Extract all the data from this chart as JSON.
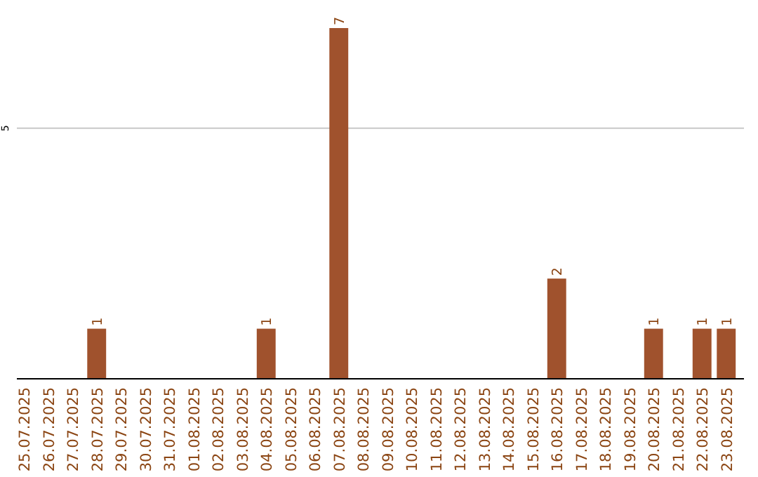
{
  "chart_data": {
    "type": "bar",
    "categories": [
      "25.07.2025",
      "26.07.2025",
      "27.07.2025",
      "28.07.2025",
      "29.07.2025",
      "30.07.2025",
      "31.07.2025",
      "01.08.2025",
      "02.08.2025",
      "03.08.2025",
      "04.08.2025",
      "05.08.2025",
      "06.08.2025",
      "07.08.2025",
      "08.08.2025",
      "09.08.2025",
      "10.08.2025",
      "11.08.2025",
      "12.08.2025",
      "13.08.2025",
      "14.08.2025",
      "15.08.2025",
      "16.08.2025",
      "17.08.2025",
      "18.08.2025",
      "19.08.2025",
      "20.08.2025",
      "21.08.2025",
      "22.08.2025",
      "23.08.2025"
    ],
    "values": [
      0,
      0,
      0,
      1,
      0,
      0,
      0,
      0,
      0,
      0,
      1,
      0,
      0,
      7,
      0,
      0,
      0,
      0,
      0,
      0,
      0,
      0,
      2,
      0,
      0,
      0,
      1,
      0,
      1,
      1
    ],
    "color": "#a0522d",
    "value_labels": [
      null,
      null,
      null,
      "1",
      null,
      null,
      null,
      null,
      null,
      null,
      "1",
      null,
      null,
      "7",
      null,
      null,
      null,
      null,
      null,
      null,
      null,
      null,
      "2",
      null,
      null,
      null,
      "1",
      null,
      "1",
      "1"
    ],
    "ylim": [
      0,
      7
    ],
    "yticks": [
      5
    ],
    "grid": "y"
  }
}
